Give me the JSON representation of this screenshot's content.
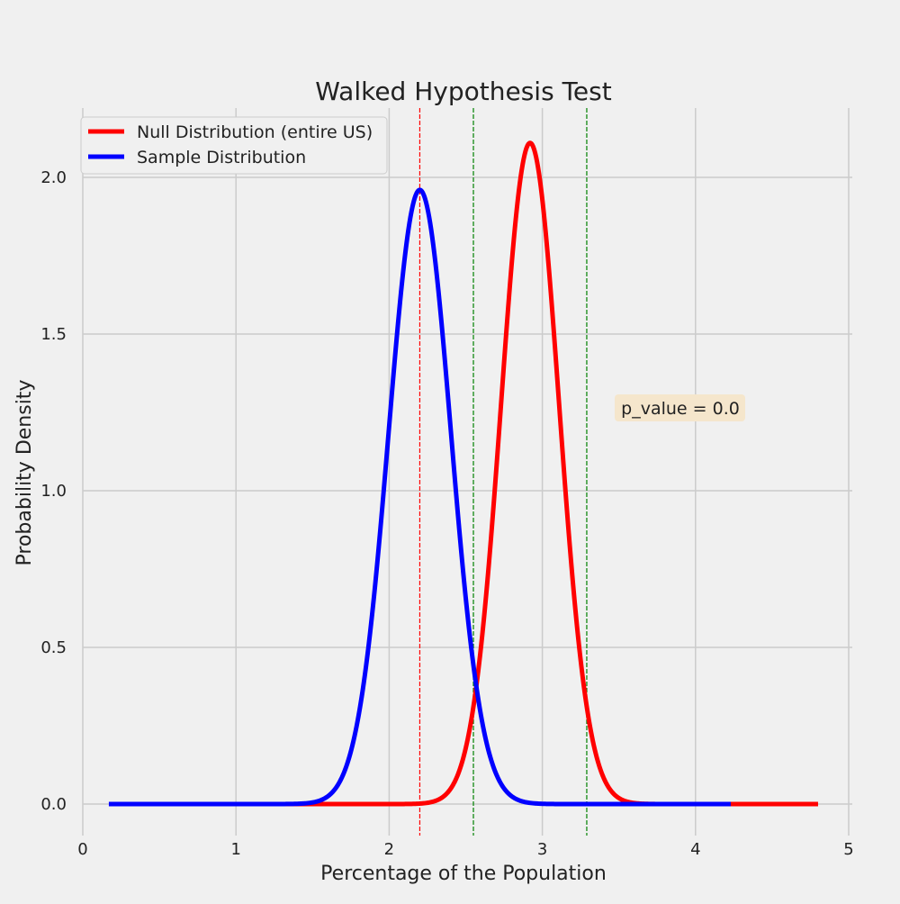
{
  "chart_data": {
    "type": "line",
    "title": "Walked Hypothesis Test",
    "xlabel": "Percentage of the Population",
    "ylabel": "Probability Density",
    "xlim": [
      0,
      5
    ],
    "ylim": [
      0,
      2.2
    ],
    "xticks": [
      0,
      1,
      2,
      3,
      4,
      5
    ],
    "yticks": [
      0.0,
      0.5,
      1.0,
      1.5,
      2.0
    ],
    "xtick_labels": [
      "0",
      "1",
      "2",
      "3",
      "4",
      "5"
    ],
    "ytick_labels": [
      "0.0",
      "0.5",
      "1.0",
      "1.5",
      "2.0"
    ],
    "grid": true,
    "legend_position": "top-left",
    "series": [
      {
        "name": "Null Distribution (entire US)",
        "color": "#ff0000",
        "distribution": "normal",
        "mean": 2.92,
        "sd": 0.189,
        "x_range": [
          1.03,
          4.8
        ],
        "peak": 2.11
      },
      {
        "name": "Sample Distribution",
        "color": "#0000ff",
        "distribution": "normal",
        "mean": 2.2,
        "sd": 0.203,
        "x_range": [
          0.17,
          4.23
        ],
        "peak": 1.96
      }
    ],
    "reference_lines": [
      {
        "x": 2.2,
        "color": "#ff0000",
        "style": "dashed"
      },
      {
        "x": 2.55,
        "color": "#008000",
        "style": "dashed"
      },
      {
        "x": 3.29,
        "color": "#008000",
        "style": "dashed"
      }
    ],
    "annotation": {
      "text": "p_value = 0.0",
      "x": 3.5,
      "y": 1.25,
      "background": "#f5e6cc"
    }
  }
}
